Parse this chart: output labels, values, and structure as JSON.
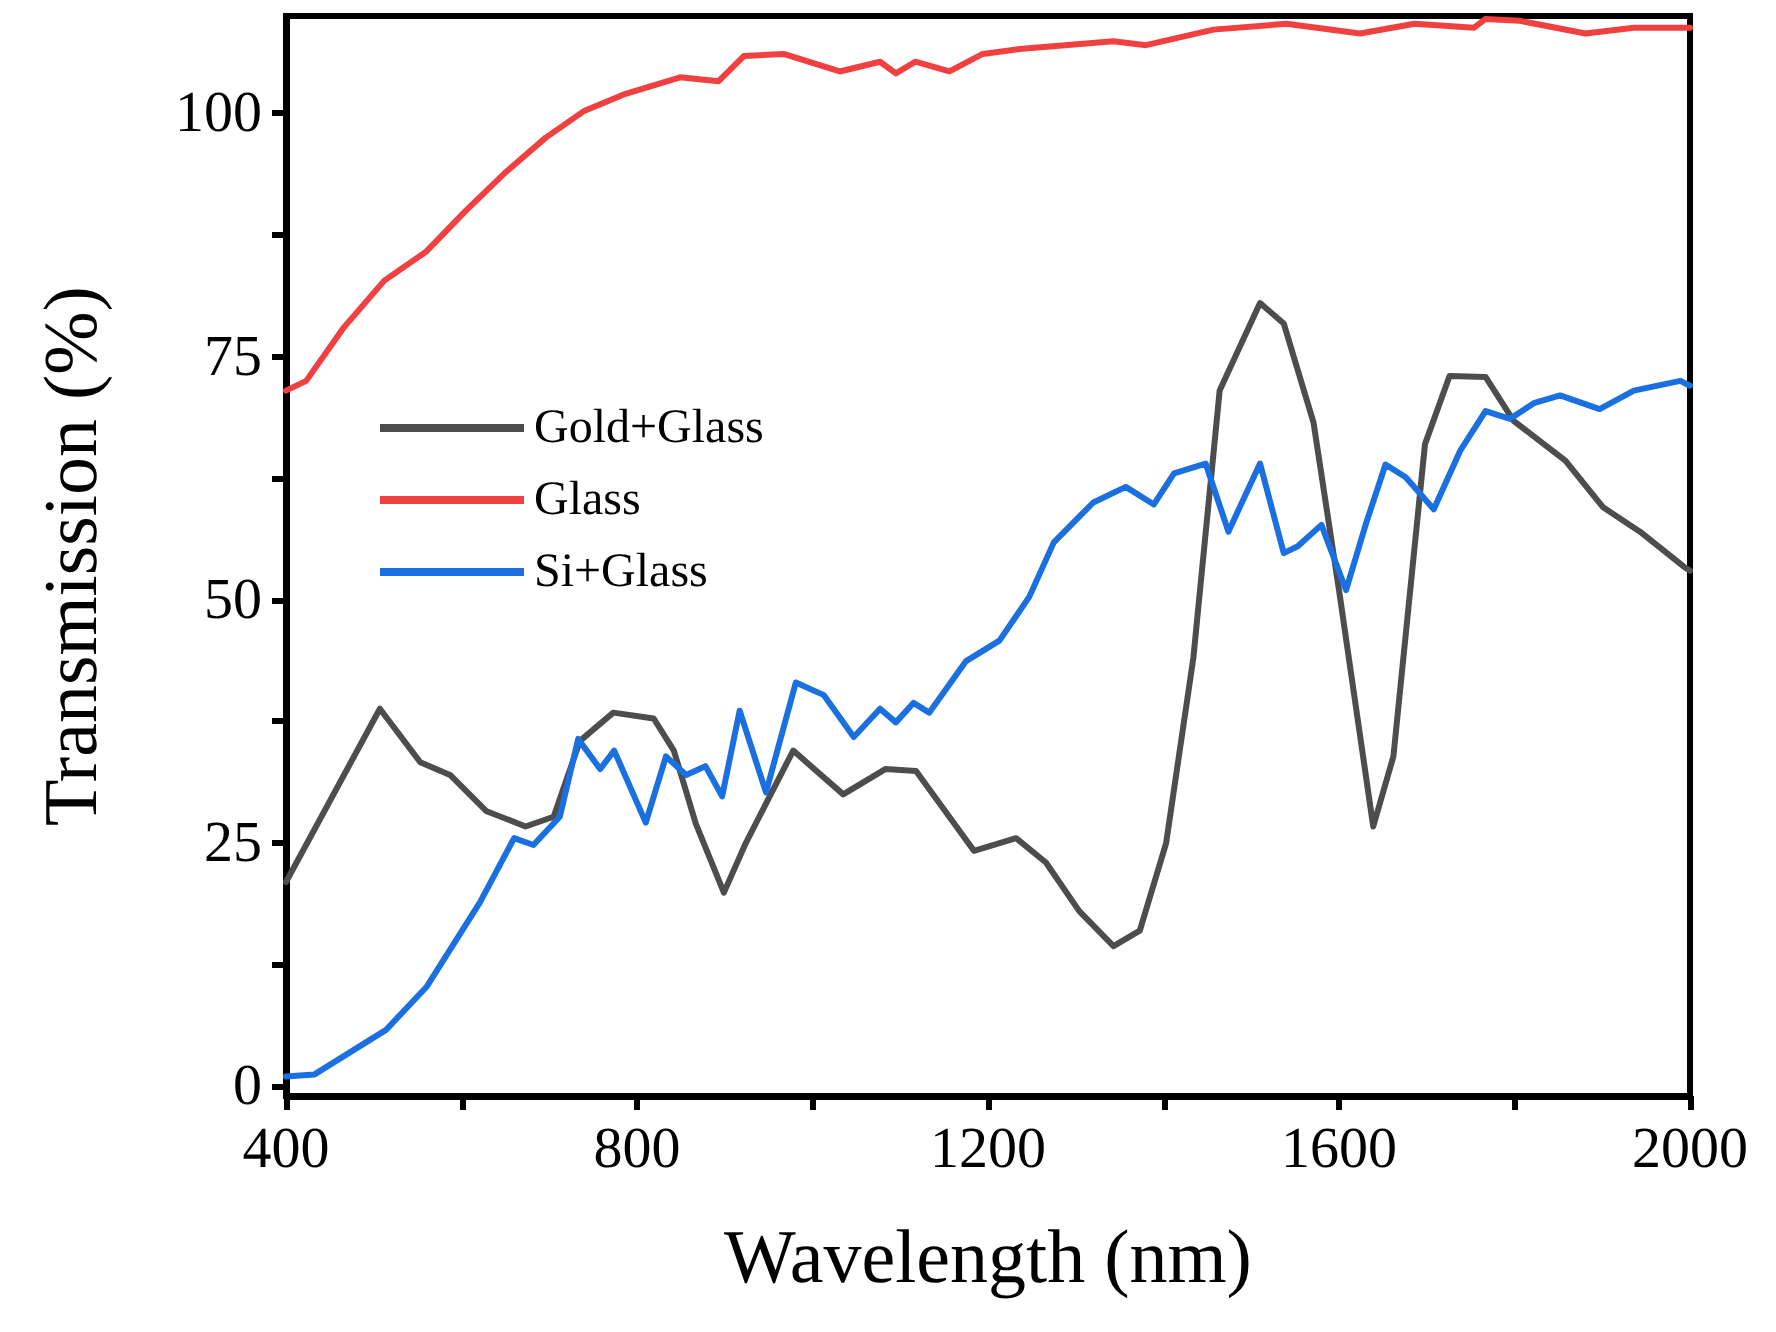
{
  "chart_data": {
    "type": "line",
    "xlabel": "Wavelength (nm)",
    "ylabel": "Transmission (%)",
    "xlim": [
      400,
      2000
    ],
    "xticks": [
      400,
      {
        "value": 600,
        "label": null
      },
      800,
      {
        "value": 1000,
        "label": null
      },
      1200,
      {
        "value": 1400,
        "label": null
      },
      1600,
      {
        "value": 1800,
        "label": null
      },
      2000
    ],
    "ylim": [
      -1,
      110
    ],
    "yticks": [
      0,
      {
        "value": 12.5,
        "label": null
      },
      25,
      {
        "value": 37.5,
        "label": null
      },
      50,
      {
        "value": 62.5,
        "label": null
      },
      75,
      {
        "value": 87.5,
        "label": null
      },
      100
    ],
    "grid": false,
    "legend": "left",
    "marker": "none",
    "line_style": "solid",
    "series": [
      {
        "name": "Gold+Glass",
        "color": "#4d4d4d",
        "x": [
          400,
          507,
          553,
          587,
          628,
          673,
          705,
          735,
          773,
          819,
          842,
          867,
          899,
          924,
          978,
          1035,
          1083,
          1118,
          1184,
          1232,
          1266,
          1304,
          1343,
          1373,
          1403,
          1434,
          1464,
          1510,
          1537,
          1571,
          1600,
          1639,
          1662,
          1698,
          1726,
          1767,
          1799,
          1829,
          1858,
          1901,
          1943,
          1993,
          2000
        ],
        "values": [
          21,
          38.8,
          33.3,
          32,
          28.3,
          26.7,
          27.7,
          35.5,
          38.4,
          37.8,
          34.5,
          27,
          19.9,
          25,
          34.5,
          30,
          32.6,
          32.4,
          24.2,
          25.5,
          23,
          18,
          14.4,
          16,
          25,
          44,
          71.5,
          80.5,
          78.4,
          68.2,
          51,
          26.7,
          33.9,
          66,
          73,
          72.9,
          68.4,
          66.3,
          64.3,
          59.5,
          57,
          53.4,
          53
        ]
      },
      {
        "name": "Glass",
        "color": "#f04040",
        "x": [
          400,
          423,
          466,
          512,
          560,
          605,
          651,
          696,
          739,
          787,
          849,
          893,
          922,
          967,
          1031,
          1077,
          1095,
          1117,
          1156,
          1194,
          1236,
          1343,
          1380,
          1457,
          1540,
          1624,
          1686,
          1754,
          1767,
          1806,
          1881,
          1936,
          2000
        ],
        "values": [
          71.5,
          72.5,
          78,
          82.8,
          85.8,
          90,
          94,
          97.5,
          100.2,
          102,
          103.7,
          103.3,
          105.9,
          106.1,
          104.3,
          105.3,
          104.1,
          105.3,
          104.3,
          106.1,
          106.6,
          107.4,
          107,
          108.6,
          109.2,
          108.2,
          109.2,
          108.8,
          109.7,
          109.5,
          108.2,
          108.8,
          108.8
        ]
      },
      {
        "name": "Si+Glass",
        "color": "#1a70e0",
        "x": [
          400,
          432,
          514,
          560,
          621,
          660,
          682,
          712,
          733,
          758,
          774,
          810,
          833,
          856,
          878,
          897,
          917,
          947,
          981,
          1013,
          1047,
          1077,
          1095,
          1115,
          1133,
          1175,
          1213,
          1247,
          1275,
          1320,
          1357,
          1389,
          1412,
          1448,
          1474,
          1510,
          1537,
          1553,
          1580,
          1608,
          1631,
          1653,
          1676,
          1708,
          1738,
          1767,
          1795,
          1822,
          1852,
          1897,
          1936,
          1989,
          2000
        ],
        "values": [
          1,
          1.2,
          5.8,
          10.2,
          18.9,
          25.5,
          24.8,
          27.7,
          35.7,
          32.6,
          34.5,
          27.1,
          33.9,
          32,
          32.9,
          29.8,
          38.6,
          30.2,
          41.5,
          40.2,
          35.9,
          38.8,
          37.4,
          39.4,
          38.4,
          43.7,
          45.8,
          50.3,
          55.9,
          60,
          61.6,
          59.8,
          63,
          64,
          57,
          64,
          54.8,
          55.5,
          57.7,
          51,
          57.9,
          63.9,
          62.6,
          59.3,
          65.3,
          69.4,
          68.6,
          70.2,
          71,
          69.6,
          71.5,
          72.5,
          72
        ]
      }
    ]
  }
}
